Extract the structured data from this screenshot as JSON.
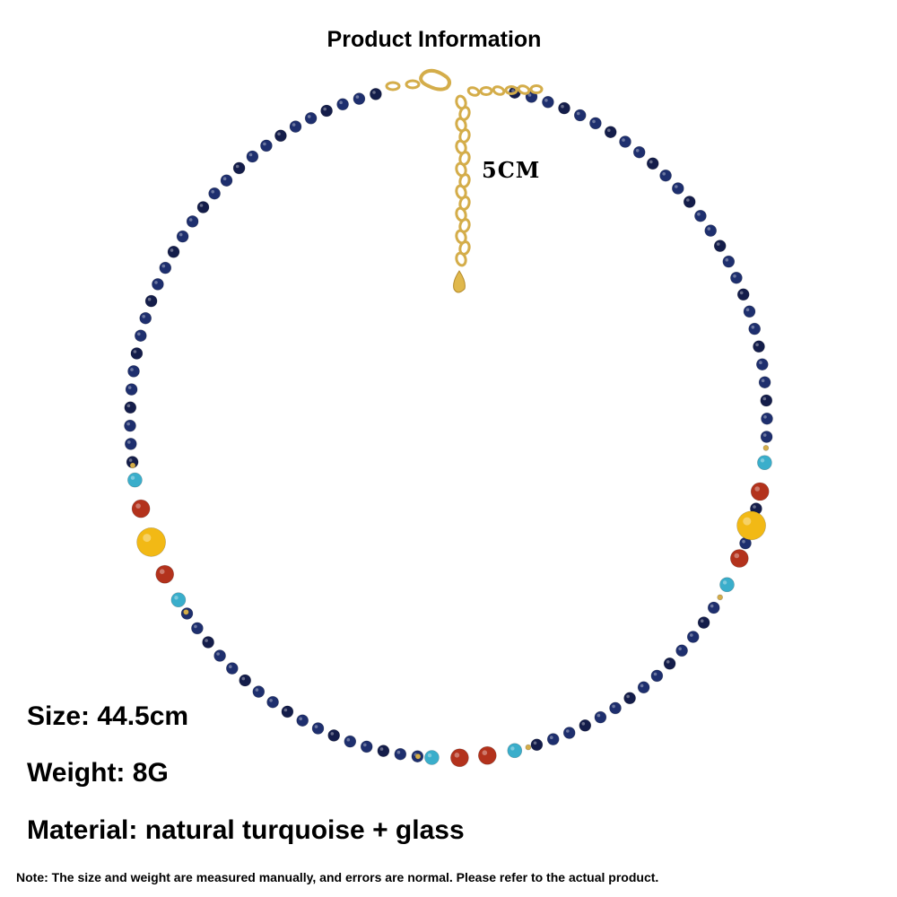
{
  "header": {
    "title": "Product Information"
  },
  "extender": {
    "label": "5CM"
  },
  "specs": {
    "size": "Size: 44.5cm",
    "weight": "Weight: 8G",
    "material": "Material: natural turquoise + glass"
  },
  "footer": {
    "note": "Note: The size and weight are measured manually, and errors are normal. Please refer to the actual product."
  },
  "necklace": {
    "bead_colors": {
      "lapis": "#1e2f6e",
      "lapis_dark": "#141d4a",
      "turquoise": "#3aaecb",
      "red_agate": "#b3321c",
      "yellow_agate": "#f2b915",
      "gold": "#d4ad4a"
    }
  }
}
